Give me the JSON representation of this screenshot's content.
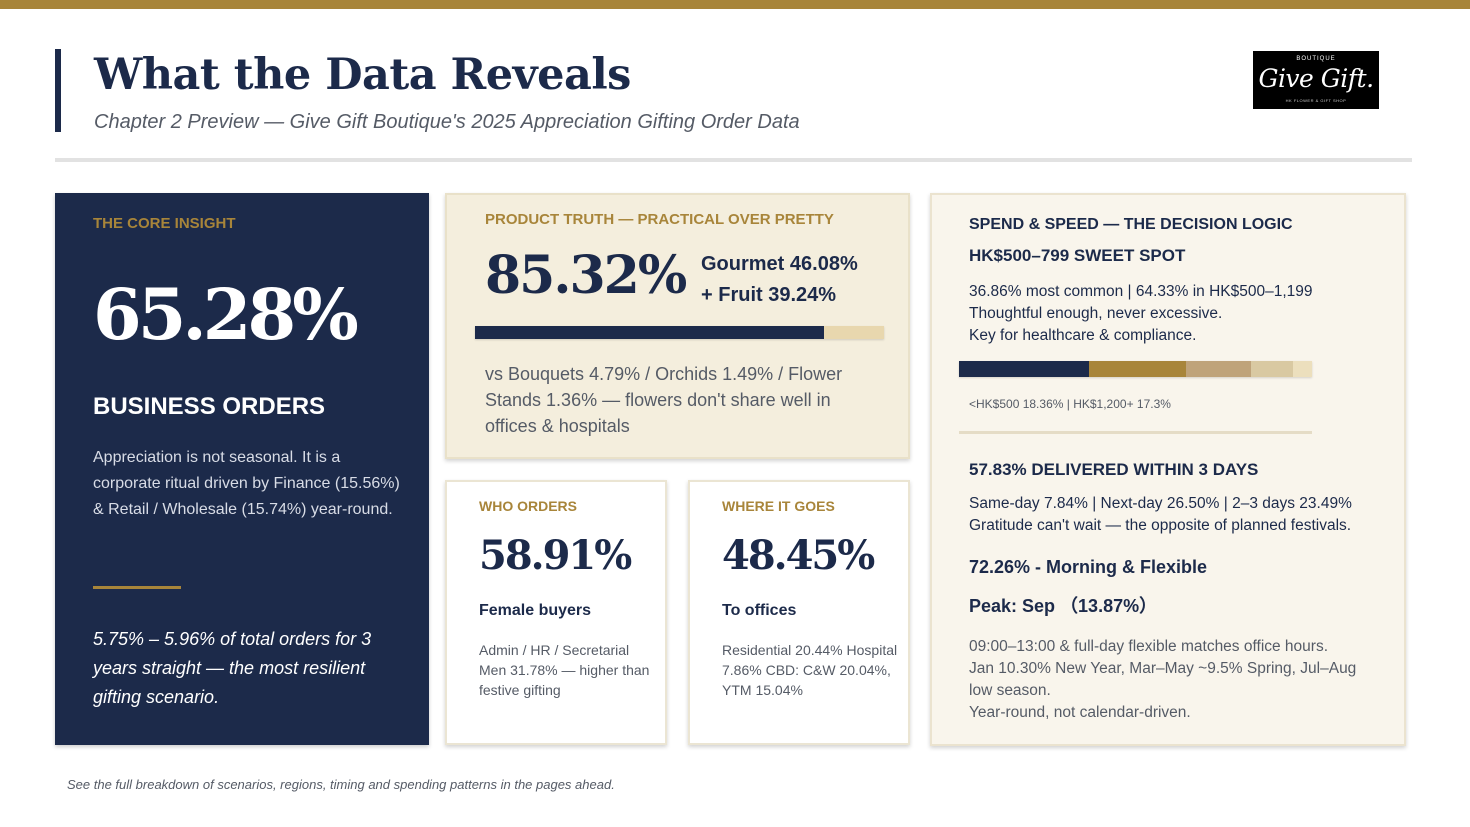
{
  "header": {
    "title": "What the Data Reveals",
    "subtitle": "Chapter 2 Preview  —  Give Gift Boutique's 2025 Appreciation Gifting Order Data"
  },
  "logo": {
    "top": "BOUTIQUE",
    "main": "Give Gift.",
    "bottom": "HK FLOWER & GIFT SHOP"
  },
  "core": {
    "label": "THE CORE INSIGHT",
    "value": "65.28%",
    "heading": "BUSINESS ORDERS",
    "body": "Appreciation is not seasonal. It is a corporate ritual driven by Finance (15.56%) & Retail / Wholesale (15.74%) year-round.",
    "quote": "5.75% – 5.96% of total orders for 3 years straight — the most resilient gifting scenario."
  },
  "product": {
    "label": "PRODUCT TRUTH  —  PRACTICAL OVER PRETTY",
    "value": "85.32%",
    "line1": "Gourmet 46.08%",
    "line2": "+ Fruit 39.24%",
    "bar_fraction": 0.8532,
    "body": "vs Bouquets 4.79% / Orchids 1.49% / Flower Stands 1.36% — flowers don't share well in offices & hospitals"
  },
  "who": {
    "label": "WHO ORDERS",
    "value": "58.91%",
    "heading": "Female buyers",
    "body": "Admin / HR / Secretarial Men 31.78% — higher than festive gifting"
  },
  "where": {
    "label": "WHERE IT GOES",
    "value": "48.45%",
    "heading": "To offices",
    "body": "Residential 20.44% Hospital 7.86% CBD: C&W 20.04%, YTM 15.04%"
  },
  "spend": {
    "label": "SPEND & SPEED — THE DECISION LOGIC",
    "heading": "HK$500–799  SWEET SPOT",
    "line1": "36.86% most common  |  64.33% in HK$500–1,199",
    "line2": "Thoughtful enough, never excessive.",
    "line3": "Key for healthcare & compliance.",
    "bar_colors": [
      "#1c2a4a",
      "#a8853a",
      "#bfa37a",
      "#d9c9a2",
      "#ecdfbd"
    ],
    "bar_segments": [
      36.86,
      27.47,
      18.36,
      12.0,
      5.31
    ],
    "caption": "<HK$500  18.36%   |   HK$1,200+  17.3%",
    "delivery_heading": "57.83% DELIVERED WITHIN 3 DAYS",
    "delivery_line1": "Same-day 7.84%  |  Next-day 26.50%  |  2–3 days 23.49%",
    "delivery_line2": "Gratitude can't wait — the opposite of planned festivals.",
    "morning": "72.26% - Morning & Flexible",
    "peak": "Peak: Sep （13.87%）",
    "time_line1": "09:00–13:00 & full-day flexible matches office hours.",
    "time_line2": "Jan 10.30% New Year, Mar–May ~9.5% Spring, Jul–Aug",
    "time_line3": "low season.",
    "time_line4": "Year-round, not calendar-driven."
  },
  "footer": "See the full breakdown of scenarios, regions, timing and spending patterns in the pages ahead."
}
